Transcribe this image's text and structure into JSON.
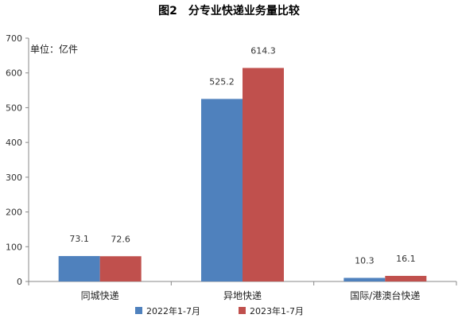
{
  "chart_data": {
    "type": "bar",
    "title": "图2　分专业快递业务量比较",
    "unit_label": "单位：亿件",
    "categories": [
      "同城快递",
      "异地快递",
      "国际/港澳台快递"
    ],
    "series": [
      {
        "name": "2022年1-7月",
        "values": [
          73.1,
          525.2,
          10.3
        ],
        "value_labels": [
          "73.1",
          "525.2",
          "10.3"
        ],
        "color": "#4f81bd"
      },
      {
        "name": "2023年1-7月",
        "values": [
          72.6,
          614.3,
          16.1
        ],
        "value_labels": [
          "72.6",
          "614.3",
          "16.1"
        ],
        "color": "#c0504d"
      }
    ],
    "ylim": [
      0,
      700
    ],
    "yticks": [
      "0",
      "100",
      "200",
      "300",
      "400",
      "500",
      "600",
      "700"
    ],
    "grid": false,
    "legend_position": "bottom"
  }
}
